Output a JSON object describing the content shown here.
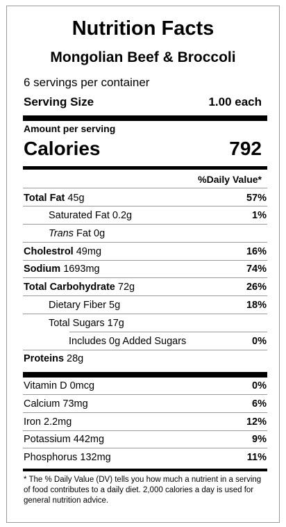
{
  "label": {
    "title": "Nutrition Facts",
    "product": "Mongolian Beef & Broccoli",
    "servings_per_container": "6 servings per container",
    "serving_size_label": "Serving Size",
    "serving_size_value": "1.00 each",
    "amount_per_serving": "Amount per serving",
    "calories_label": "Calories",
    "calories_value": "792",
    "daily_value_header": "%Daily Value*",
    "nutrients": {
      "total_fat": {
        "label": "Total Fat",
        "amount": "45g",
        "pct": "57%"
      },
      "saturated_fat": {
        "label": "Saturated Fat",
        "amount": "0.2g",
        "pct": "1%"
      },
      "trans_fat": {
        "label_italic": "Trans",
        "label_rest": "Fat",
        "amount": "0g"
      },
      "cholestrol": {
        "label": "Cholestrol",
        "amount": "49mg",
        "pct": "16%"
      },
      "sodium": {
        "label": "Sodium",
        "amount": "1693mg",
        "pct": "74%"
      },
      "total_carbohydrate": {
        "label": "Total Carbohydrate",
        "amount": "72g",
        "pct": "26%"
      },
      "dietary_fiber": {
        "label": "Dietary Fiber",
        "amount": "5g",
        "pct": "18%"
      },
      "total_sugars": {
        "label": "Total Sugars",
        "amount": "17g"
      },
      "added_sugars": {
        "label": "Includes 0g Added Sugars",
        "pct": "0%"
      },
      "proteins": {
        "label": "Proteins",
        "amount": "28g"
      }
    },
    "vitamins": {
      "vitamin_d": {
        "label": "Vitamin D 0mcg",
        "pct": "0%"
      },
      "calcium": {
        "label": "Calcium 73mg",
        "pct": "6%"
      },
      "iron": {
        "label": "Iron 2.2mg",
        "pct": "12%"
      },
      "potassium": {
        "label": "Potassium 442mg",
        "pct": "9%"
      },
      "phosphorus": {
        "label": "Phosphorus 132mg",
        "pct": "11%"
      }
    },
    "footnote": "* The % Daily Value (DV) tells you how much a nutrient in a serving of food contributes to a daily diet. 2,000 calories a day is used for general nutrition advice."
  }
}
